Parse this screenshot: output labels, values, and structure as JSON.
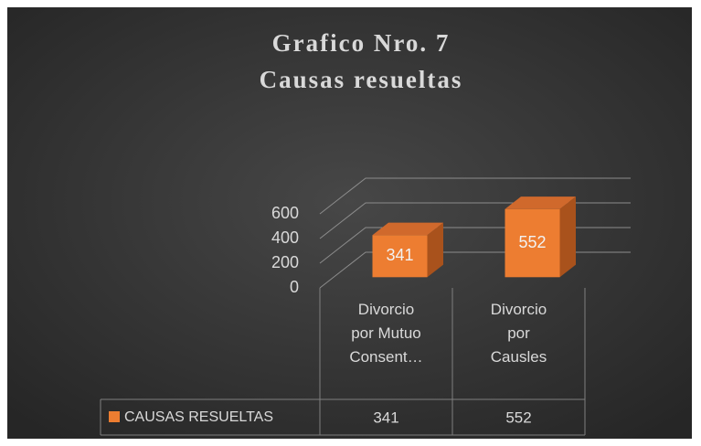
{
  "chart_data": {
    "type": "bar3d",
    "title": "Grafico Nro. 7",
    "subtitle": "Causas resueltas",
    "categories": [
      "Divorcio por Mutuo Consent…",
      "Divorcio por Causles"
    ],
    "series": [
      {
        "name": "CAUSAS RESUELTAS",
        "color": "#ed7d31",
        "values": [
          341,
          552
        ]
      }
    ],
    "ylim": [
      0,
      600
    ],
    "yticks": [
      0,
      200,
      400,
      600
    ],
    "grid": true,
    "data_table": true
  }
}
